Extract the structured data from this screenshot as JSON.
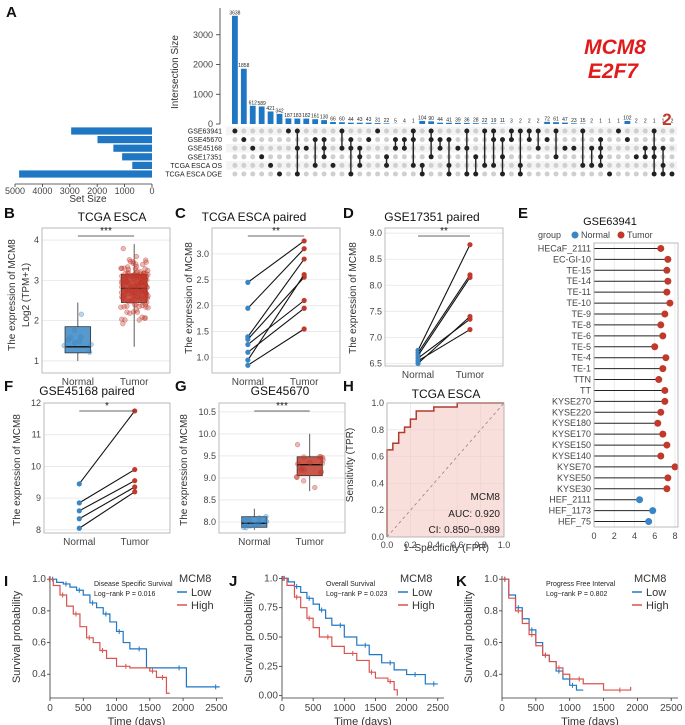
{
  "highlight": {
    "gene": "MCM8",
    "partner": "E2F7",
    "count": "2",
    "color": "#e01b1b"
  },
  "colors": {
    "normal": "#3a86c4",
    "tumor": "#c0392b",
    "bar": "#1f77c4",
    "low": "#1f77c4",
    "high": "#d9534f"
  },
  "panels": {
    "A": {
      "label": "A",
      "ylabel": "Intersection Size",
      "xlabel": "Set Size",
      "chart_data": {
        "type": "bar",
        "intersections": [
          3638,
          1858,
          612,
          589,
          421,
          342,
          187,
          183,
          182,
          161,
          130,
          66,
          60,
          44,
          43,
          43,
          31,
          22,
          5,
          4,
          1,
          104,
          90,
          44,
          41,
          39,
          36,
          28,
          22,
          19,
          11,
          3,
          2,
          2,
          2,
          72,
          61,
          47,
          23,
          15,
          2,
          1,
          1,
          1,
          102,
          2,
          2,
          1,
          1,
          2
        ],
        "yticks": [
          0,
          1000,
          2000,
          3000
        ],
        "ymax": 3900,
        "sets": [
          "GSE63941",
          "GSE45670",
          "GSE45168",
          "GSE17351",
          "TCGA ESCA OS",
          "TCGA ESCA DGE"
        ],
        "set_sizes": [
          2950,
          1990,
          1410,
          1090,
          720,
          4850
        ],
        "set_ticks": [
          "5000",
          "4000",
          "3000",
          "2000",
          "1000",
          "0"
        ]
      }
    },
    "B": {
      "label": "B",
      "title": "TCGA ESCA",
      "ylabel": "The expression of MCM8",
      "ylabel2": "Log2 (TPM+1)",
      "sig": "***",
      "chart_data": {
        "type": "box",
        "groups": [
          "Normal",
          "Tumor"
        ],
        "box": [
          {
            "min": 1.0,
            "q1": 1.2,
            "median": 1.35,
            "q3": 1.85,
            "max": 2.45
          },
          {
            "min": 1.35,
            "q1": 2.45,
            "median": 2.8,
            "q3": 3.15,
            "max": 3.9
          }
        ],
        "ylim": [
          0.7,
          4.3
        ],
        "yticks": [
          1,
          2,
          3,
          4
        ]
      }
    },
    "C": {
      "label": "C",
      "title": "TCGA ESCA paired",
      "ylabel": "The expression of MCM8",
      "sig": "**",
      "chart_data": {
        "type": "paired",
        "groups": [
          "Normal",
          "Tumor"
        ],
        "pairs": [
          [
            2.45,
            3.25
          ],
          [
            1.95,
            3.1
          ],
          [
            1.4,
            2.9
          ],
          [
            1.35,
            2.55
          ],
          [
            1.25,
            2.1
          ],
          [
            1.1,
            1.95
          ],
          [
            0.95,
            2.6
          ],
          [
            0.85,
            1.55
          ]
        ],
        "ylim": [
          0.7,
          3.5
        ],
        "yticks": [
          1.0,
          1.5,
          2.0,
          2.5,
          3.0
        ]
      }
    },
    "D": {
      "label": "D",
      "title": "GSE17351 paired",
      "ylabel": "The expression of MCM8",
      "sig": "**",
      "chart_data": {
        "type": "paired",
        "groups": [
          "Normal",
          "Tumor"
        ],
        "pairs": [
          [
            6.75,
            8.78
          ],
          [
            6.7,
            8.2
          ],
          [
            6.65,
            8.15
          ],
          [
            6.6,
            7.35
          ],
          [
            6.55,
            7.15
          ],
          [
            6.5,
            7.4
          ]
        ],
        "ylim": [
          6.45,
          9.1
        ],
        "yticks": [
          6.5,
          7.0,
          7.5,
          8.0,
          8.5,
          9.0
        ]
      }
    },
    "E": {
      "label": "E",
      "title": "GSE63941",
      "legend_title": "group",
      "legend_items": [
        "Normal",
        "Tumor"
      ],
      "chart_data": {
        "type": "lollipop",
        "cells": [
          "HECaF_2111",
          "EC-GI-10",
          "TE-15",
          "TE-14",
          "TE-11",
          "TE-10",
          "TE-9",
          "TE-8",
          "TE-6",
          "TE-5",
          "TE-4",
          "TE-1",
          "TTN",
          "TT",
          "KYSE270",
          "KYSE220",
          "KYSE180",
          "KYSE170",
          "KYSE150",
          "KYSE140",
          "KYSE70",
          "KYSE50",
          "KYSE30",
          "HEF_2111",
          "HEF_1173",
          "HEF_75"
        ],
        "values": [
          6.6,
          7.3,
          7.2,
          7.3,
          7.2,
          7.5,
          7.0,
          6.6,
          6.8,
          6.0,
          7.1,
          6.8,
          6.4,
          7.0,
          7.0,
          6.6,
          6.3,
          6.8,
          7.2,
          6.6,
          8.0,
          7.3,
          7.2,
          4.5,
          5.8,
          5.4
        ],
        "group": [
          "Tumor",
          "Tumor",
          "Tumor",
          "Tumor",
          "Tumor",
          "Tumor",
          "Tumor",
          "Tumor",
          "Tumor",
          "Tumor",
          "Tumor",
          "Tumor",
          "Tumor",
          "Tumor",
          "Tumor",
          "Tumor",
          "Tumor",
          "Tumor",
          "Tumor",
          "Tumor",
          "Tumor",
          "Tumor",
          "Tumor",
          "Normal",
          "Normal",
          "Normal"
        ],
        "xticks": [
          0,
          2,
          4,
          6,
          8
        ]
      }
    },
    "F": {
      "label": "F",
      "title": "GSE45168 paired",
      "ylabel": "The expression of MCM8",
      "sig": "*",
      "chart_data": {
        "type": "paired",
        "groups": [
          "Normal",
          "Tumor"
        ],
        "pairs": [
          [
            9.45,
            11.75
          ],
          [
            8.85,
            9.9
          ],
          [
            8.6,
            9.55
          ],
          [
            8.35,
            9.35
          ],
          [
            8.05,
            9.2
          ]
        ],
        "ylim": [
          7.9,
          12.0
        ],
        "yticks": [
          8,
          9,
          10,
          11,
          12
        ]
      }
    },
    "G": {
      "label": "G",
      "title": "GSE45670",
      "ylabel": "The expression of MCM8",
      "sig": "***",
      "chart_data": {
        "type": "box",
        "groups": [
          "Normal",
          "Tumor"
        ],
        "box": [
          {
            "min": 7.82,
            "q1": 7.88,
            "median": 7.97,
            "q3": 8.12,
            "max": 8.3
          },
          {
            "min": 8.7,
            "q1": 9.05,
            "median": 9.3,
            "q3": 9.48,
            "max": 10.0
          }
        ],
        "ylim": [
          7.75,
          10.7
        ],
        "yticks": [
          8.0,
          8.5,
          9.0,
          9.5,
          10.0,
          10.5
        ]
      }
    },
    "H": {
      "label": "H",
      "title": "TCGA ESCA",
      "ylabel": "Sensitivity (TPR)",
      "xlabel": "1−Specificity (FPR)",
      "gene": "MCM8",
      "auc": "AUC: 0.920",
      "ci": "CI: 0.850−0.989",
      "chart_data": {
        "type": "roc",
        "fpr": [
          0,
          0,
          0.05,
          0.05,
          0.1,
          0.1,
          0.15,
          0.15,
          0.2,
          0.2,
          0.25,
          0.25,
          0.4,
          0.4,
          0.6,
          0.6,
          1.0
        ],
        "tpr": [
          0,
          0.65,
          0.65,
          0.7,
          0.7,
          0.78,
          0.78,
          0.82,
          0.82,
          0.88,
          0.88,
          0.94,
          0.94,
          0.97,
          0.97,
          1.0,
          1.0
        ],
        "ticks": [
          0.0,
          0.2,
          0.4,
          0.6,
          0.8,
          1.0
        ]
      }
    },
    "I": {
      "label": "I",
      "title": "Disease Specific Survival",
      "logrank": "Log−rank P = 0.016",
      "legend_title": "MCM8",
      "legend_items": [
        "Low",
        "High"
      ],
      "ylabel": "Survival probability",
      "xlabel": "Time (days)",
      "chart_data": {
        "type": "km",
        "xticks": [
          0,
          500,
          1000,
          1500,
          2000,
          2500
        ],
        "yticks": [
          0.4,
          0.6,
          0.8,
          1.0
        ],
        "ylim": [
          0.25,
          1.02
        ],
        "low": [
          [
            0,
            1
          ],
          [
            100,
            0.98
          ],
          [
            200,
            0.97
          ],
          [
            300,
            0.95
          ],
          [
            400,
            0.93
          ],
          [
            500,
            0.9
          ],
          [
            600,
            0.85
          ],
          [
            700,
            0.82
          ],
          [
            800,
            0.78
          ],
          [
            900,
            0.73
          ],
          [
            1000,
            0.67
          ],
          [
            1100,
            0.6
          ],
          [
            1200,
            0.56
          ],
          [
            1400,
            0.56
          ],
          [
            1450,
            0.44
          ],
          [
            2000,
            0.44
          ],
          [
            2050,
            0.32
          ],
          [
            2550,
            0.32
          ]
        ],
        "high": [
          [
            0,
            1
          ],
          [
            50,
            0.96
          ],
          [
            150,
            0.9
          ],
          [
            250,
            0.83
          ],
          [
            350,
            0.78
          ],
          [
            450,
            0.7
          ],
          [
            550,
            0.63
          ],
          [
            650,
            0.6
          ],
          [
            750,
            0.55
          ],
          [
            850,
            0.5
          ],
          [
            1000,
            0.45
          ],
          [
            1200,
            0.44
          ],
          [
            1500,
            0.42
          ],
          [
            1600,
            0.38
          ],
          [
            1700,
            0.38
          ],
          [
            1750,
            0.28
          ],
          [
            1800,
            0.28
          ]
        ]
      }
    },
    "J": {
      "label": "J",
      "title": "Overall Survival",
      "logrank": "Log−rank P = 0.023",
      "legend_title": "MCM8",
      "legend_items": [
        "Low",
        "High"
      ],
      "ylabel": "Survival probability",
      "xlabel": "Time (days)",
      "chart_data": {
        "type": "km",
        "xticks": [
          0,
          500,
          1000,
          1500,
          2000,
          2500
        ],
        "yticks": [
          0.0,
          0.25,
          0.5,
          0.75,
          1.0
        ],
        "ylim": [
          -0.02,
          1.02
        ],
        "low": [
          [
            0,
            1
          ],
          [
            100,
            0.97
          ],
          [
            200,
            0.93
          ],
          [
            300,
            0.88
          ],
          [
            400,
            0.83
          ],
          [
            500,
            0.78
          ],
          [
            600,
            0.73
          ],
          [
            700,
            0.66
          ],
          [
            800,
            0.6
          ],
          [
            1000,
            0.5
          ],
          [
            1200,
            0.43
          ],
          [
            1400,
            0.35
          ],
          [
            1600,
            0.28
          ],
          [
            1800,
            0.22
          ],
          [
            2000,
            0.18
          ],
          [
            2200,
            0.18
          ],
          [
            2300,
            0.1
          ],
          [
            2500,
            0.1
          ]
        ],
        "high": [
          [
            0,
            1
          ],
          [
            80,
            0.94
          ],
          [
            200,
            0.84
          ],
          [
            300,
            0.75
          ],
          [
            400,
            0.66
          ],
          [
            500,
            0.58
          ],
          [
            600,
            0.5
          ],
          [
            800,
            0.42
          ],
          [
            1000,
            0.36
          ],
          [
            1200,
            0.3
          ],
          [
            1400,
            0.2
          ],
          [
            1500,
            0.15
          ],
          [
            1700,
            0.12
          ],
          [
            1800,
            0.05
          ],
          [
            1850,
            0.0
          ]
        ]
      }
    },
    "K": {
      "label": "K",
      "title": "Progress Free Interval",
      "logrank": "Log−rank P = 0.802",
      "legend_title": "MCM8",
      "legend_items": [
        "Low",
        "High"
      ],
      "ylabel": "Survival probability",
      "xlabel": "Time (days)",
      "chart_data": {
        "type": "km",
        "xticks": [
          0,
          500,
          1000,
          1500,
          2000,
          2500
        ],
        "yticks": [
          0.4,
          0.6,
          0.8,
          1.0
        ],
        "ylim": [
          0.25,
          1.02
        ],
        "low": [
          [
            0,
            1
          ],
          [
            100,
            0.9
          ],
          [
            200,
            0.82
          ],
          [
            300,
            0.75
          ],
          [
            400,
            0.68
          ],
          [
            500,
            0.6
          ],
          [
            600,
            0.52
          ],
          [
            700,
            0.48
          ],
          [
            800,
            0.42
          ],
          [
            900,
            0.37
          ],
          [
            1000,
            0.33
          ],
          [
            1100,
            0.3
          ],
          [
            1200,
            0.3
          ]
        ],
        "high": [
          [
            0,
            1
          ],
          [
            100,
            0.88
          ],
          [
            200,
            0.8
          ],
          [
            300,
            0.72
          ],
          [
            400,
            0.65
          ],
          [
            500,
            0.58
          ],
          [
            600,
            0.52
          ],
          [
            700,
            0.48
          ],
          [
            800,
            0.44
          ],
          [
            900,
            0.4
          ],
          [
            1000,
            0.37
          ],
          [
            1200,
            0.34
          ],
          [
            1500,
            0.3
          ],
          [
            1800,
            0.3
          ],
          [
            1900,
            0.32
          ]
        ]
      }
    }
  }
}
